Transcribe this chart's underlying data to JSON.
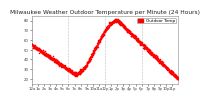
{
  "title": "Milwaukee Weather Outdoor Temperature per Minute (24 Hours)",
  "legend_label": "Outdoor Temp",
  "dot_color": "#ff0000",
  "legend_box_color": "#ff0000",
  "background_color": "#ffffff",
  "grid_color": "#888888",
  "ylim": [
    15,
    85
  ],
  "yticks": [
    20,
    30,
    40,
    50,
    60,
    70,
    80
  ],
  "xtick_positions": [
    0,
    60,
    120,
    180,
    240,
    300,
    360,
    420,
    480,
    540,
    600,
    660,
    720,
    780,
    840,
    900,
    960,
    1020,
    1080,
    1140,
    1200,
    1260,
    1320,
    1380
  ],
  "xtick_labels": [
    "12a",
    "1a",
    "2a",
    "3a",
    "4a",
    "5a",
    "6a",
    "7a",
    "8a",
    "9a",
    "10a",
    "11a",
    "12p",
    "1p",
    "2p",
    "3p",
    "4p",
    "5p",
    "6p",
    "7p",
    "8p",
    "9p",
    "10p",
    "11p"
  ],
  "vline_positions": [
    0,
    360,
    720,
    1080,
    1440
  ],
  "n_points": 1440,
  "marker_size": 1.2,
  "title_fontsize": 4.2,
  "tick_fontsize": 2.8,
  "legend_fontsize": 3.0
}
